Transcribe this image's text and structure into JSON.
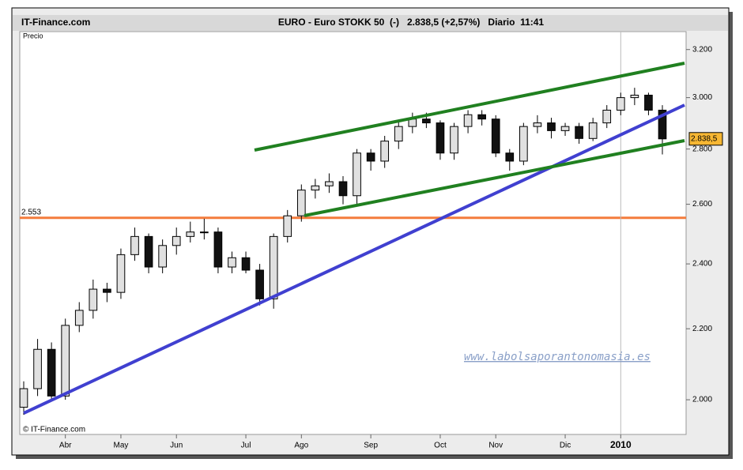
{
  "header": {
    "site": "IT-Finance.com",
    "title": "EURO - Euro STOKK 50  (-)   2.838,5 (+2,57%)   Diario  11:41"
  },
  "chart_data": {
    "type": "candlestick",
    "panel_label": "Precio",
    "categories": [
      null,
      null,
      null,
      "Abr",
      null,
      null,
      null,
      "May",
      null,
      null,
      null,
      "Jun",
      null,
      null,
      null,
      null,
      "Jul",
      null,
      null,
      null,
      "Ago",
      null,
      null,
      null,
      null,
      "Sep",
      null,
      null,
      null,
      null,
      "Oct",
      null,
      null,
      null,
      "Nov",
      null,
      null,
      null,
      null,
      "Dic",
      null,
      null,
      null,
      "2010",
      null,
      null,
      null
    ],
    "open": [
      1980,
      2030,
      2140,
      2010,
      2210,
      2255,
      2320,
      2310,
      2430,
      2490,
      2390,
      2460,
      2490,
      2505,
      2505,
      2390,
      2420,
      2380,
      2290,
      2490,
      2560,
      2650,
      2665,
      2680,
      2630,
      2785,
      2755,
      2830,
      2886,
      2915,
      2900,
      2785,
      2886,
      2932,
      2915,
      2785,
      2755,
      2886,
      2900,
      2870,
      2886,
      2840,
      2900,
      2950,
      3000,
      3010,
      2950
    ],
    "high": [
      2050,
      2170,
      2160,
      2230,
      2280,
      2350,
      2340,
      2450,
      2520,
      2500,
      2480,
      2520,
      2540,
      2550,
      2520,
      2440,
      2440,
      2400,
      2500,
      2580,
      2670,
      2690,
      2710,
      2700,
      2800,
      2800,
      2850,
      2910,
      2940,
      2940,
      2910,
      2900,
      2950,
      2950,
      2930,
      2800,
      2900,
      2930,
      2920,
      2900,
      2900,
      2920,
      2970,
      3020,
      3040,
      3020,
      2970
    ],
    "low": [
      1960,
      2010,
      2000,
      2000,
      2190,
      2230,
      2280,
      2290,
      2410,
      2370,
      2370,
      2430,
      2470,
      2480,
      2370,
      2370,
      2370,
      2270,
      2260,
      2470,
      2540,
      2620,
      2640,
      2600,
      2600,
      2720,
      2730,
      2800,
      2860,
      2880,
      2760,
      2760,
      2860,
      2890,
      2770,
      2720,
      2740,
      2860,
      2840,
      2850,
      2820,
      2830,
      2880,
      2930,
      2970,
      2930,
      2780
    ],
    "close": [
      2030,
      2140,
      2010,
      2210,
      2255,
      2320,
      2310,
      2430,
      2490,
      2390,
      2460,
      2490,
      2505,
      2505,
      2390,
      2420,
      2380,
      2290,
      2490,
      2560,
      2650,
      2665,
      2680,
      2630,
      2785,
      2755,
      2830,
      2886,
      2915,
      2900,
      2785,
      2886,
      2932,
      2915,
      2785,
      2755,
      2886,
      2900,
      2870,
      2886,
      2840,
      2900,
      2950,
      3000,
      3010,
      2950,
      2838.5
    ],
    "up_color": "#e0e0e0",
    "down_color": "#111111",
    "ylim": [
      1909,
      3278
    ],
    "log_scale": true,
    "yticks": [
      {
        "value": 2000,
        "label": "2.000"
      },
      {
        "value": 2200,
        "label": "2.200"
      },
      {
        "value": 2400,
        "label": "2.400"
      },
      {
        "value": 2600,
        "label": "2.600"
      },
      {
        "value": 2800,
        "label": "2.800"
      },
      {
        "value": 3000,
        "label": "3.000"
      },
      {
        "value": 3200,
        "label": "3.200"
      }
    ],
    "last": {
      "value": 2838.5,
      "label": "2.838,5",
      "color": "#f7b733"
    },
    "hline": {
      "value": 2553,
      "label": "2.553",
      "color": "#f47c3c"
    }
  },
  "watermark": "www.labolsaporantonomasia.es",
  "copyright": "© IT-Finance.com"
}
